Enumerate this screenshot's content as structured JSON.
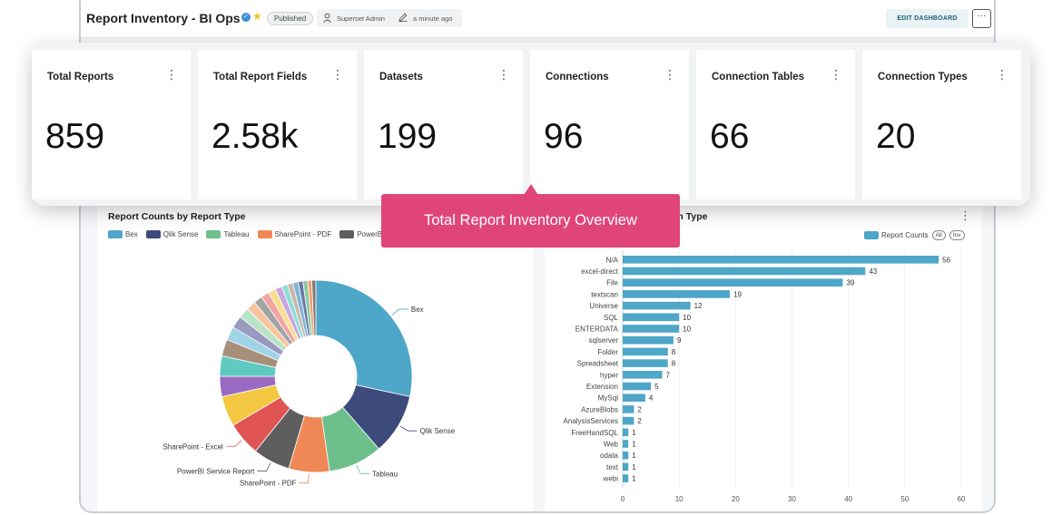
{
  "header": {
    "title": "Report Inventory - BI Ops",
    "status": "Published",
    "owner": "Superset Admin",
    "modified": "a minute ago",
    "edit_label": "EDIT DASHBOARD",
    "more_label": "···"
  },
  "kpis": [
    {
      "label": "Total Reports",
      "value": "859"
    },
    {
      "label": "Total Report Fields",
      "value": "2.58k"
    },
    {
      "label": "Datasets",
      "value": "199"
    },
    {
      "label": "Connections",
      "value": "96"
    },
    {
      "label": "Connection Tables",
      "value": "66"
    },
    {
      "label": "Connection Types",
      "value": "20"
    }
  ],
  "callout": {
    "text": "Total Report Inventory Overview"
  },
  "left_panel": {
    "title": "Report Counts by Report Type",
    "legend": [
      {
        "label": "Bex",
        "color": "#4ea6c8"
      },
      {
        "label": "Qlik Sense",
        "color": "#3d4a7c"
      },
      {
        "label": "Tableau",
        "color": "#6dc08c"
      },
      {
        "label": "SharePoint - PDF",
        "color": "#f08856"
      },
      {
        "label": "PowerBI Service Report",
        "color": "#5e5e5e"
      }
    ]
  },
  "right_panel": {
    "title_visible": "on Type",
    "legend_label": "Report Counts",
    "pill_all": "All",
    "pill_inv": "Inv"
  },
  "chart_data": [
    {
      "type": "pie",
      "title": "Report Counts by Report Type",
      "slices": [
        {
          "label": "Bex",
          "value": 25,
          "color": "#4ea6c8"
        },
        {
          "label": "Qlik Sense",
          "value": 9,
          "color": "#3d4a7c"
        },
        {
          "label": "Tableau",
          "value": 8,
          "color": "#6dc08c"
        },
        {
          "label": "SharePoint - PDF",
          "value": 6,
          "color": "#f08856"
        },
        {
          "label": "PowerBI Service Report",
          "value": 5.5,
          "color": "#5e5e5e"
        },
        {
          "label": "SharePoint - Excel",
          "value": 5,
          "color": "#e05454"
        },
        {
          "label": "",
          "value": 4.5,
          "color": "#f5c842"
        },
        {
          "label": "",
          "value": 3,
          "color": "#9a6bc2"
        },
        {
          "label": "",
          "value": 3,
          "color": "#5ecac2"
        },
        {
          "label": "",
          "value": 2.5,
          "color": "#a88f7a"
        },
        {
          "label": "",
          "value": 2,
          "color": "#9fd3e8"
        },
        {
          "label": "",
          "value": 1.8,
          "color": "#9a9ac0"
        },
        {
          "label": "",
          "value": 1.6,
          "color": "#b9e3c6"
        },
        {
          "label": "",
          "value": 1.4,
          "color": "#f7c49e"
        },
        {
          "label": "",
          "value": 1.3,
          "color": "#a3a3a3"
        },
        {
          "label": "",
          "value": 1.2,
          "color": "#f2a3a3"
        },
        {
          "label": "",
          "value": 1.1,
          "color": "#f8df8e"
        },
        {
          "label": "",
          "value": 1,
          "color": "#c8a6e0"
        },
        {
          "label": "",
          "value": 0.9,
          "color": "#8fddd7"
        },
        {
          "label": "",
          "value": 0.8,
          "color": "#c9b8a8"
        },
        {
          "label": "",
          "value": 0.8,
          "color": "#7fb6d6"
        },
        {
          "label": "",
          "value": 0.7,
          "color": "#6a78a8"
        },
        {
          "label": "",
          "value": 0.7,
          "color": "#8ccaa2"
        },
        {
          "label": "",
          "value": 0.6,
          "color": "#f0a070"
        },
        {
          "label": "",
          "value": 0.6,
          "color": "#7a7a7a"
        }
      ],
      "labeled": [
        "Bex",
        "Qlik Sense",
        "Tableau",
        "SharePoint - PDF",
        "PowerBI Service Report",
        "SharePoint - Excel"
      ]
    },
    {
      "type": "bar",
      "orientation": "horizontal",
      "series_name": "Report Counts",
      "color": "#4ea6c8",
      "categories": [
        "N/A",
        "excel-direct",
        "File",
        "textscan",
        "Universe",
        "SQL",
        "ENTERDATA",
        "sqlserver",
        "Folder",
        "Spreadsheet",
        "hyper",
        "Extension",
        "MySql",
        "AzureBlobs",
        "AnalysisServices",
        "FreeHandSQL",
        "Web",
        "odata",
        "text",
        "webi"
      ],
      "values": [
        56,
        43,
        39,
        19,
        12,
        10,
        10,
        9,
        8,
        8,
        7,
        5,
        4,
        2,
        2,
        1,
        1,
        1,
        1,
        1
      ],
      "xlim": [
        0,
        60
      ],
      "xticks": [
        0,
        10,
        20,
        30,
        40,
        50,
        60
      ]
    }
  ]
}
